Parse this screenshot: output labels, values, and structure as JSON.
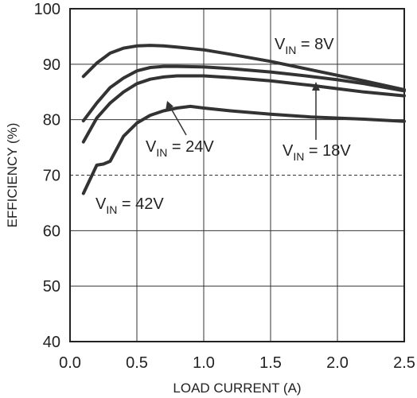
{
  "chart_data": {
    "type": "line",
    "title": "",
    "xlabel": "LOAD CURRENT (A)",
    "ylabel": "EFFICIENCY (%)",
    "xlim": [
      0,
      2.5
    ],
    "ylim": [
      40,
      100
    ],
    "x_ticks": [
      "0.0",
      "0.5",
      "1.0",
      "1.5",
      "2.0",
      "2.5"
    ],
    "y_ticks": [
      "40",
      "50",
      "60",
      "70",
      "80",
      "90",
      "100"
    ],
    "grid": true,
    "dashed_reference_y": 70,
    "series": [
      {
        "name": "VIN = 8V",
        "x": [
          0.1,
          0.2,
          0.3,
          0.4,
          0.5,
          0.6,
          0.7,
          0.8,
          1.0,
          1.2,
          1.5,
          1.8,
          2.0,
          2.2,
          2.5
        ],
        "y": [
          87.8,
          90.2,
          92.0,
          92.9,
          93.3,
          93.4,
          93.3,
          93.1,
          92.6,
          91.8,
          90.5,
          89.0,
          88.0,
          87.0,
          85.4
        ]
      },
      {
        "name": "VIN = 18V",
        "x": [
          0.1,
          0.2,
          0.3,
          0.4,
          0.5,
          0.6,
          0.7,
          0.8,
          1.0,
          1.2,
          1.5,
          1.8,
          2.0,
          2.2,
          2.5
        ],
        "y": [
          79.8,
          83.0,
          85.8,
          87.5,
          88.8,
          89.4,
          89.6,
          89.6,
          89.5,
          89.2,
          88.6,
          87.8,
          87.2,
          86.5,
          85.2
        ]
      },
      {
        "name": "VIN = 24V",
        "x": [
          0.1,
          0.2,
          0.3,
          0.4,
          0.5,
          0.6,
          0.7,
          0.8,
          1.0,
          1.2,
          1.5,
          1.8,
          2.0,
          2.2,
          2.5
        ],
        "y": [
          76.0,
          80.3,
          83.0,
          85.0,
          86.5,
          87.3,
          87.7,
          87.9,
          87.9,
          87.6,
          87.0,
          86.2,
          85.6,
          85.0,
          84.3
        ]
      },
      {
        "name": "VIN = 42V",
        "x": [
          0.1,
          0.2,
          0.25,
          0.3,
          0.4,
          0.5,
          0.6,
          0.7,
          0.8,
          0.9,
          1.0,
          1.2,
          1.5,
          1.8,
          2.0,
          2.2,
          2.5
        ],
        "y": [
          66.7,
          71.8,
          72.0,
          72.5,
          77.0,
          79.4,
          80.8,
          81.6,
          82.1,
          82.4,
          82.1,
          81.6,
          81.0,
          80.5,
          80.3,
          80.1,
          79.7
        ]
      }
    ],
    "annotations": [
      {
        "label": "IN",
        "prefix": "V",
        "suffix": " = 8V",
        "series": "VIN = 8V"
      },
      {
        "label": "IN",
        "prefix": "V",
        "suffix": " = 18V",
        "series": "VIN = 18V"
      },
      {
        "label": "IN",
        "prefix": "V",
        "suffix": " = 24V",
        "series": "VIN = 24V"
      },
      {
        "label": "IN",
        "prefix": "V",
        "suffix": " = 42V",
        "series": "VIN = 42V"
      }
    ]
  }
}
